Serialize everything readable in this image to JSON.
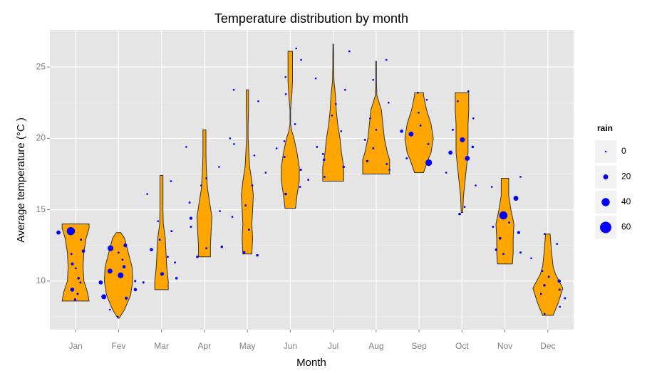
{
  "chart_data": {
    "type": "violin",
    "title": "Temperature distribution by month",
    "x_label": "Month",
    "y_label": "Average temperature (°C )",
    "categories": [
      "Jan",
      "Fev",
      "Mar",
      "Apr",
      "May",
      "Jun",
      "Jul",
      "Aug",
      "Sep",
      "Oct",
      "Nov",
      "Dec"
    ],
    "ylim": [
      6.6,
      27.6
    ],
    "yticks": [
      10,
      15,
      20,
      25
    ],
    "yminor": [
      7.5,
      12.5,
      17.5,
      22.5,
      27.5
    ],
    "grid": true,
    "violin_color": "#ffa500",
    "point_color": "#0000ff",
    "violins": [
      {
        "y": [
          8.6,
          9.2,
          10,
          11,
          12,
          13,
          13.7,
          14
        ],
        "density": [
          0.9,
          0.8,
          0.55,
          0.5,
          0.55,
          0.7,
          0.9,
          0.9
        ]
      },
      {
        "y": [
          7.4,
          8,
          9,
          10,
          11,
          12,
          13,
          13.4
        ],
        "density": [
          0.05,
          0.4,
          0.8,
          0.95,
          0.9,
          0.65,
          0.4,
          0.15
        ]
      },
      {
        "y": [
          9.4,
          10,
          11,
          12,
          13,
          14,
          15,
          16,
          17.4
        ],
        "density": [
          0.45,
          0.45,
          0.35,
          0.3,
          0.25,
          0.12,
          0.1,
          0.1,
          0.1
        ]
      },
      {
        "y": [
          11.7,
          12.5,
          13.5,
          14.5,
          15.5,
          16.5,
          18,
          19,
          20.6
        ],
        "density": [
          0.4,
          0.4,
          0.45,
          0.5,
          0.35,
          0.2,
          0.12,
          0.1,
          0.1
        ]
      },
      {
        "y": [
          11.9,
          13,
          14,
          15,
          16,
          17,
          18,
          19,
          20,
          21,
          22,
          23.4
        ],
        "density": [
          0.3,
          0.35,
          0.3,
          0.35,
          0.4,
          0.3,
          0.15,
          0.1,
          0.05,
          0.05,
          0.08,
          0.08
        ]
      },
      {
        "y": [
          15.1,
          16,
          17,
          18,
          19,
          20,
          20.5,
          21,
          22,
          23,
          24,
          25,
          26.1
        ],
        "density": [
          0.35,
          0.45,
          0.6,
          0.6,
          0.45,
          0.25,
          0.1,
          0.02,
          0.02,
          0.1,
          0.15,
          0.15,
          0.15
        ]
      },
      {
        "y": [
          17,
          18,
          19,
          20,
          21,
          22,
          23,
          24,
          25,
          26.6
        ],
        "density": [
          0.7,
          0.7,
          0.55,
          0.45,
          0.3,
          0.2,
          0.15,
          0.05,
          0.03,
          0.02
        ]
      },
      {
        "y": [
          17.5,
          18.5,
          19,
          20,
          21,
          22,
          23,
          24,
          25.4
        ],
        "density": [
          0.9,
          0.9,
          0.75,
          0.55,
          0.45,
          0.35,
          0.05,
          0.02,
          0.02
        ]
      },
      {
        "y": [
          17.6,
          18.5,
          19,
          20,
          21,
          22,
          23,
          23.2
        ],
        "density": [
          0.3,
          0.6,
          0.8,
          0.95,
          0.8,
          0.5,
          0.3,
          0.3
        ]
      },
      {
        "y": [
          14.8,
          16,
          17,
          18,
          19,
          20,
          21,
          22,
          23.2
        ],
        "density": [
          0.05,
          0.1,
          0.2,
          0.3,
          0.4,
          0.4,
          0.4,
          0.45,
          0.45
        ]
      },
      {
        "y": [
          11.2,
          12,
          13,
          14,
          15,
          16,
          17.2
        ],
        "density": [
          0.5,
          0.55,
          0.55,
          0.6,
          0.4,
          0.25,
          0.25
        ]
      },
      {
        "y": [
          7.6,
          8.5,
          9.5,
          10.5,
          11,
          12,
          13.3
        ],
        "density": [
          0.35,
          0.7,
          1.0,
          0.5,
          0.35,
          0.25,
          0.15
        ]
      }
    ],
    "temps": [
      [
        13.5,
        13.4,
        12.1,
        11.2,
        10.2,
        9.4,
        9.1,
        8.7,
        12.9,
        11.9,
        10.9,
        9.9
      ],
      [
        12.3,
        12.5,
        11.0,
        10.7,
        10.4,
        9.9,
        9.4,
        8.9,
        8.8,
        12.0,
        11.5,
        8.0,
        7.5,
        10.0
      ],
      [
        12.2,
        11.7,
        12.9,
        10.5,
        10.2,
        9.9,
        13.5,
        16.1,
        17.0,
        14.2,
        11.3
      ],
      [
        14.4,
        12.4,
        11.7,
        12.3,
        15.5,
        16.7,
        18.0,
        19.4,
        17.2,
        13.8,
        14.9
      ],
      [
        12.0,
        11.8,
        15.3,
        16.7,
        14.5,
        13.6,
        18.8,
        20.0,
        22.6,
        23.4,
        17.6,
        19.6
      ],
      [
        16.1,
        17.8,
        18.7,
        17.1,
        19.8,
        21.0,
        24.3,
        25.5,
        26.3,
        23.1,
        16.6,
        19.3
      ],
      [
        18.5,
        18.0,
        19.4,
        20.5,
        21.6,
        22.4,
        24.2,
        26.1,
        17.3,
        18.9,
        23.4
      ],
      [
        18.4,
        18.2,
        19.3,
        20.6,
        21.4,
        22.5,
        24.1,
        25.5,
        19.9,
        17.8
      ],
      [
        18.3,
        20.3,
        20.5,
        19.6,
        21.8,
        22.7,
        23.2,
        20.9,
        18.6
      ],
      [
        19.9,
        19.0,
        18.6,
        19.4,
        14.7,
        16.7,
        17.6,
        21.4,
        22.6,
        23.3,
        20.6,
        15.2
      ],
      [
        15.8,
        14.6,
        13.4,
        13.0,
        12.2,
        12.0,
        11.9,
        14.1,
        16.6,
        17.3,
        13.8
      ],
      [
        10.0,
        9.7,
        9.4,
        9.1,
        8.8,
        10.7,
        11.6,
        12.6,
        13.3,
        8.2,
        7.7,
        10.3
      ]
    ],
    "rains": [
      [
        40,
        15,
        10,
        8,
        5,
        15,
        3,
        5,
        2,
        2,
        1,
        2
      ],
      [
        25,
        12,
        10,
        20,
        25,
        15,
        10,
        20,
        8,
        2,
        2,
        1,
        1,
        3
      ],
      [
        10,
        2,
        2,
        12,
        5,
        3,
        2,
        1,
        1,
        1,
        2
      ],
      [
        8,
        5,
        5,
        2,
        2,
        1,
        1,
        1,
        1,
        2,
        1
      ],
      [
        6,
        5,
        2,
        2,
        1,
        2,
        1,
        1,
        1,
        1,
        1,
        1
      ],
      [
        5,
        3,
        2,
        2,
        1,
        1,
        1,
        1,
        1,
        1,
        2,
        1
      ],
      [
        5,
        4,
        2,
        1,
        1,
        1,
        1,
        1,
        2,
        2,
        1
      ],
      [
        4,
        2,
        2,
        1,
        1,
        1,
        1,
        1,
        2,
        1
      ],
      [
        30,
        20,
        10,
        2,
        1,
        1,
        1,
        2,
        2
      ],
      [
        20,
        15,
        20,
        5,
        5,
        1,
        1,
        1,
        1,
        1,
        2,
        1
      ],
      [
        20,
        40,
        8,
        6,
        5,
        3,
        2,
        2,
        1,
        1,
        2
      ],
      [
        10,
        5,
        3,
        2,
        2,
        2,
        1,
        1,
        1,
        1,
        1,
        2
      ]
    ],
    "legend": {
      "title": "rain",
      "values": [
        0,
        20,
        40,
        60
      ]
    }
  }
}
